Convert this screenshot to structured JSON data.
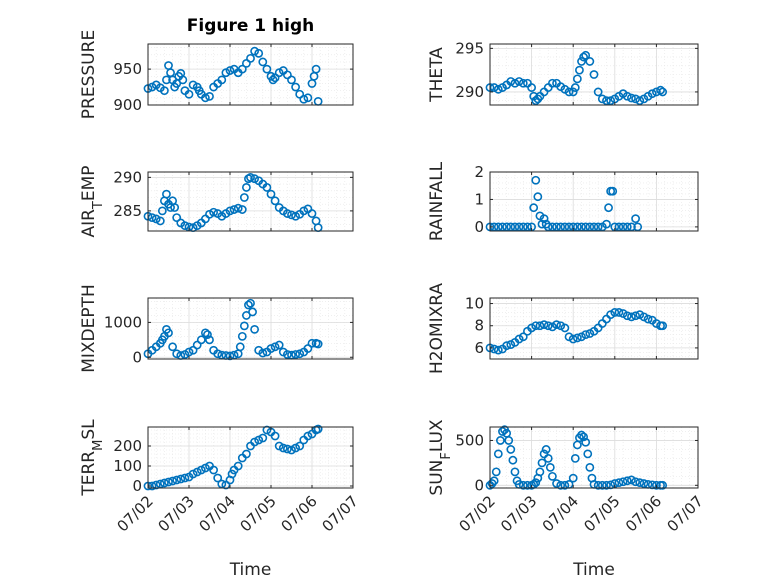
{
  "figure": {
    "marker_color": "#0072BD",
    "x_tick_labels": [
      "07/02",
      "07/03",
      "07/04",
      "07/05",
      "07/06",
      "07/07"
    ],
    "x_tick_values": [
      0,
      1,
      2,
      3,
      4,
      5
    ]
  },
  "chart_data": [
    {
      "type": "scatter",
      "title": "Figure 1 high",
      "ylabel": "PRESSURE",
      "xlabel": "",
      "xlim": [
        0,
        5
      ],
      "ylim": [
        900,
        985
      ],
      "yticks": [
        900,
        950
      ],
      "ytick_labels": [
        "900",
        "950"
      ],
      "x": [
        0,
        0.1,
        0.2,
        0.3,
        0.4,
        0.45,
        0.5,
        0.55,
        0.6,
        0.65,
        0.7,
        0.75,
        0.8,
        0.85,
        0.9,
        1.0,
        1.1,
        1.2,
        1.25,
        1.3,
        1.4,
        1.5,
        1.6,
        1.7,
        1.8,
        1.9,
        2.0,
        2.1,
        2.2,
        2.3,
        2.4,
        2.5,
        2.6,
        2.7,
        2.8,
        2.9,
        3.0,
        3.05,
        3.1,
        3.2,
        3.3,
        3.4,
        3.5,
        3.6,
        3.7,
        3.8,
        3.9,
        4.0,
        4.05,
        4.1,
        4.15
      ],
      "y": [
        923,
        925,
        928,
        924,
        920,
        935,
        955,
        945,
        935,
        925,
        930,
        940,
        944,
        935,
        920,
        915,
        928,
        925,
        920,
        915,
        910,
        912,
        925,
        930,
        935,
        945,
        948,
        950,
        945,
        950,
        958,
        965,
        975,
        972,
        960,
        950,
        940,
        935,
        938,
        945,
        948,
        942,
        935,
        925,
        915,
        908,
        910,
        930,
        940,
        950,
        905
      ]
    },
    {
      "type": "scatter",
      "ylabel": "THETA",
      "xlabel": "",
      "xlim": [
        0,
        5
      ],
      "ylim": [
        288.5,
        295.5
      ],
      "yticks": [
        290,
        295
      ],
      "ytick_labels": [
        "290",
        "295"
      ],
      "x": [
        0,
        0.1,
        0.2,
        0.3,
        0.4,
        0.5,
        0.6,
        0.7,
        0.8,
        0.9,
        1.0,
        1.05,
        1.1,
        1.15,
        1.2,
        1.3,
        1.4,
        1.5,
        1.6,
        1.7,
        1.8,
        1.9,
        2.0,
        2.05,
        2.1,
        2.15,
        2.2,
        2.25,
        2.3,
        2.4,
        2.5,
        2.6,
        2.7,
        2.8,
        2.9,
        3.0,
        3.1,
        3.2,
        3.3,
        3.4,
        3.5,
        3.6,
        3.7,
        3.8,
        3.9,
        4.0,
        4.1,
        4.15
      ],
      "y": [
        290.5,
        290.5,
        290.3,
        290.5,
        290.8,
        291.2,
        291.0,
        291.2,
        291.0,
        291.0,
        290.5,
        289.5,
        289.0,
        289.2,
        289.5,
        290.0,
        290.5,
        291.0,
        291.0,
        290.6,
        290.3,
        290.0,
        290.0,
        290.5,
        291.5,
        292.5,
        293.5,
        294.0,
        294.2,
        293.5,
        292.0,
        290.0,
        289.2,
        289.0,
        289.0,
        289.2,
        289.5,
        289.8,
        289.5,
        289.3,
        289.2,
        289.0,
        289.2,
        289.5,
        289.8,
        290.0,
        290.2,
        290.0
      ]
    },
    {
      "type": "scatter",
      "ylabel": "AIR_TEMP",
      "xlabel": "",
      "xlim": [
        0,
        5
      ],
      "ylim": [
        282,
        290.8
      ],
      "yticks": [
        285,
        290
      ],
      "ytick_labels": [
        "285",
        "290"
      ],
      "x": [
        0,
        0.1,
        0.2,
        0.3,
        0.35,
        0.4,
        0.45,
        0.5,
        0.55,
        0.6,
        0.65,
        0.7,
        0.8,
        0.9,
        1.0,
        1.1,
        1.2,
        1.3,
        1.4,
        1.5,
        1.6,
        1.7,
        1.8,
        1.9,
        2.0,
        2.1,
        2.2,
        2.3,
        2.35,
        2.4,
        2.45,
        2.5,
        2.6,
        2.7,
        2.8,
        2.9,
        3.0,
        3.1,
        3.2,
        3.3,
        3.4,
        3.5,
        3.6,
        3.7,
        3.8,
        3.9,
        4.0,
        4.1,
        4.15
      ],
      "y": [
        284.2,
        284.0,
        283.8,
        283.5,
        285.0,
        286.5,
        287.5,
        286.0,
        285.5,
        286.5,
        285.5,
        284.0,
        283.2,
        282.8,
        282.6,
        282.5,
        282.8,
        283.2,
        283.8,
        284.5,
        284.8,
        284.6,
        284.2,
        284.6,
        285.0,
        285.2,
        285.4,
        285.2,
        287.0,
        288.5,
        289.8,
        290.0,
        289.8,
        289.5,
        289.0,
        288.5,
        287.5,
        286.5,
        285.5,
        285.0,
        284.6,
        284.4,
        284.2,
        284.5,
        285.0,
        285.3,
        284.6,
        283.5,
        282.5
      ]
    },
    {
      "type": "scatter",
      "ylabel": "RAINFALL",
      "xlabel": "",
      "xlim": [
        0,
        5
      ],
      "ylim": [
        -0.15,
        2.0
      ],
      "yticks": [
        0,
        1,
        2
      ],
      "ytick_labels": [
        "0",
        "1",
        "2"
      ],
      "x": [
        0,
        0.1,
        0.2,
        0.3,
        0.4,
        0.5,
        0.6,
        0.7,
        0.8,
        0.9,
        1.0,
        1.05,
        1.1,
        1.15,
        1.2,
        1.25,
        1.3,
        1.35,
        1.4,
        1.5,
        1.6,
        1.7,
        1.8,
        1.9,
        2.0,
        2.1,
        2.2,
        2.3,
        2.4,
        2.5,
        2.6,
        2.7,
        2.8,
        2.85,
        2.9,
        2.95,
        3.0,
        3.1,
        3.2,
        3.3,
        3.4,
        3.5,
        3.55
      ],
      "y": [
        0,
        0,
        0,
        0,
        0,
        0,
        0,
        0,
        0,
        0,
        0,
        0.7,
        1.7,
        1.1,
        0.4,
        0.1,
        0.3,
        0.1,
        0,
        0,
        0,
        0,
        0,
        0,
        0,
        0,
        0,
        0,
        0,
        0,
        0,
        0,
        0.1,
        0.7,
        1.3,
        1.3,
        0,
        0,
        0,
        0,
        0,
        0.3,
        0
      ]
    },
    {
      "type": "scatter",
      "ylabel": "MIXDEPTH",
      "xlabel": "",
      "xlim": [
        0,
        5
      ],
      "ylim": [
        -50,
        1700
      ],
      "yticks": [
        0,
        1000
      ],
      "ytick_labels": [
        "0",
        "1000"
      ],
      "x": [
        0,
        0.1,
        0.2,
        0.3,
        0.35,
        0.4,
        0.45,
        0.5,
        0.6,
        0.7,
        0.8,
        0.9,
        1.0,
        1.1,
        1.2,
        1.3,
        1.4,
        1.45,
        1.5,
        1.6,
        1.7,
        1.8,
        1.9,
        2.0,
        2.1,
        2.2,
        2.25,
        2.3,
        2.35,
        2.4,
        2.45,
        2.5,
        2.55,
        2.6,
        2.7,
        2.8,
        2.9,
        3.0,
        3.1,
        3.2,
        3.3,
        3.4,
        3.5,
        3.6,
        3.7,
        3.8,
        3.9,
        4.0,
        4.1,
        4.15
      ],
      "y": [
        100,
        200,
        300,
        400,
        500,
        600,
        800,
        700,
        300,
        100,
        50,
        80,
        150,
        200,
        350,
        500,
        700,
        650,
        500,
        200,
        100,
        60,
        50,
        40,
        60,
        100,
        300,
        600,
        900,
        1200,
        1500,
        1550,
        1300,
        800,
        200,
        120,
        150,
        250,
        300,
        350,
        150,
        80,
        60,
        80,
        100,
        150,
        250,
        400,
        400,
        380
      ]
    },
    {
      "type": "scatter",
      "ylabel": "H2OMIXRA",
      "xlabel": "",
      "xlim": [
        0,
        5
      ],
      "ylim": [
        5,
        10.5
      ],
      "yticks": [
        6,
        8,
        10
      ],
      "ytick_labels": [
        "6",
        "8",
        "10"
      ],
      "x": [
        0,
        0.1,
        0.2,
        0.3,
        0.4,
        0.5,
        0.6,
        0.7,
        0.8,
        0.9,
        1.0,
        1.1,
        1.2,
        1.3,
        1.4,
        1.5,
        1.6,
        1.7,
        1.8,
        1.9,
        2.0,
        2.1,
        2.2,
        2.3,
        2.4,
        2.5,
        2.6,
        2.7,
        2.8,
        2.9,
        3.0,
        3.1,
        3.2,
        3.3,
        3.4,
        3.5,
        3.6,
        3.7,
        3.8,
        3.9,
        4.0,
        4.1,
        4.15
      ],
      "y": [
        6.0,
        5.9,
        5.8,
        5.9,
        6.2,
        6.3,
        6.5,
        6.8,
        7.0,
        7.5,
        7.8,
        8.0,
        8.0,
        8.1,
        8.0,
        7.9,
        8.1,
        8.0,
        7.8,
        7.0,
        6.8,
        6.9,
        7.0,
        7.2,
        7.3,
        7.5,
        7.8,
        8.2,
        8.6,
        9.0,
        9.2,
        9.2,
        9.1,
        8.9,
        8.8,
        8.9,
        9.0,
        8.8,
        8.6,
        8.5,
        8.2,
        8.0,
        8.0
      ]
    },
    {
      "type": "scatter",
      "ylabel": "TERR_MSL",
      "xlabel": "Time",
      "xlim": [
        0,
        5
      ],
      "ylim": [
        -10,
        295
      ],
      "yticks": [
        0,
        100,
        200
      ],
      "ytick_labels": [
        "0",
        "100",
        "200"
      ],
      "x": [
        0,
        0.1,
        0.2,
        0.3,
        0.4,
        0.5,
        0.6,
        0.7,
        0.8,
        0.9,
        1.0,
        1.1,
        1.2,
        1.3,
        1.4,
        1.5,
        1.6,
        1.7,
        1.8,
        1.9,
        2.0,
        2.05,
        2.1,
        2.2,
        2.3,
        2.4,
        2.5,
        2.6,
        2.7,
        2.8,
        2.9,
        3.0,
        3.1,
        3.2,
        3.3,
        3.4,
        3.5,
        3.6,
        3.7,
        3.8,
        3.9,
        4.0,
        4.1,
        4.15
      ],
      "y": [
        0,
        0,
        5,
        10,
        15,
        20,
        25,
        30,
        35,
        40,
        45,
        60,
        70,
        80,
        90,
        100,
        80,
        40,
        10,
        5,
        30,
        60,
        80,
        100,
        140,
        160,
        200,
        220,
        230,
        240,
        280,
        270,
        250,
        200,
        190,
        185,
        180,
        190,
        200,
        230,
        250,
        260,
        280,
        285
      ]
    },
    {
      "type": "scatter",
      "ylabel": "SUN_FLUX",
      "xlabel": "Time",
      "xlim": [
        0,
        5
      ],
      "ylim": [
        -30,
        650
      ],
      "yticks": [
        0,
        500
      ],
      "ytick_labels": [
        "0",
        "500"
      ],
      "x": [
        0,
        0.05,
        0.1,
        0.15,
        0.2,
        0.25,
        0.3,
        0.35,
        0.4,
        0.45,
        0.5,
        0.55,
        0.6,
        0.65,
        0.7,
        0.8,
        0.9,
        1.0,
        1.05,
        1.1,
        1.15,
        1.2,
        1.25,
        1.3,
        1.35,
        1.4,
        1.45,
        1.5,
        1.6,
        1.7,
        1.8,
        1.9,
        2.0,
        2.05,
        2.1,
        2.15,
        2.2,
        2.25,
        2.3,
        2.35,
        2.4,
        2.45,
        2.5,
        2.6,
        2.7,
        2.8,
        2.9,
        3.0,
        3.1,
        3.2,
        3.3,
        3.4,
        3.5,
        3.6,
        3.7,
        3.8,
        3.9,
        4.0,
        4.1,
        4.15
      ],
      "y": [
        0,
        20,
        50,
        150,
        350,
        500,
        600,
        620,
        580,
        500,
        400,
        280,
        150,
        50,
        10,
        0,
        0,
        0,
        10,
        30,
        80,
        150,
        250,
        350,
        400,
        300,
        200,
        100,
        20,
        0,
        0,
        10,
        80,
        300,
        450,
        530,
        560,
        540,
        480,
        350,
        200,
        80,
        10,
        0,
        0,
        0,
        5,
        20,
        30,
        40,
        50,
        60,
        40,
        30,
        20,
        10,
        5,
        0,
        0,
        0
      ]
    }
  ]
}
